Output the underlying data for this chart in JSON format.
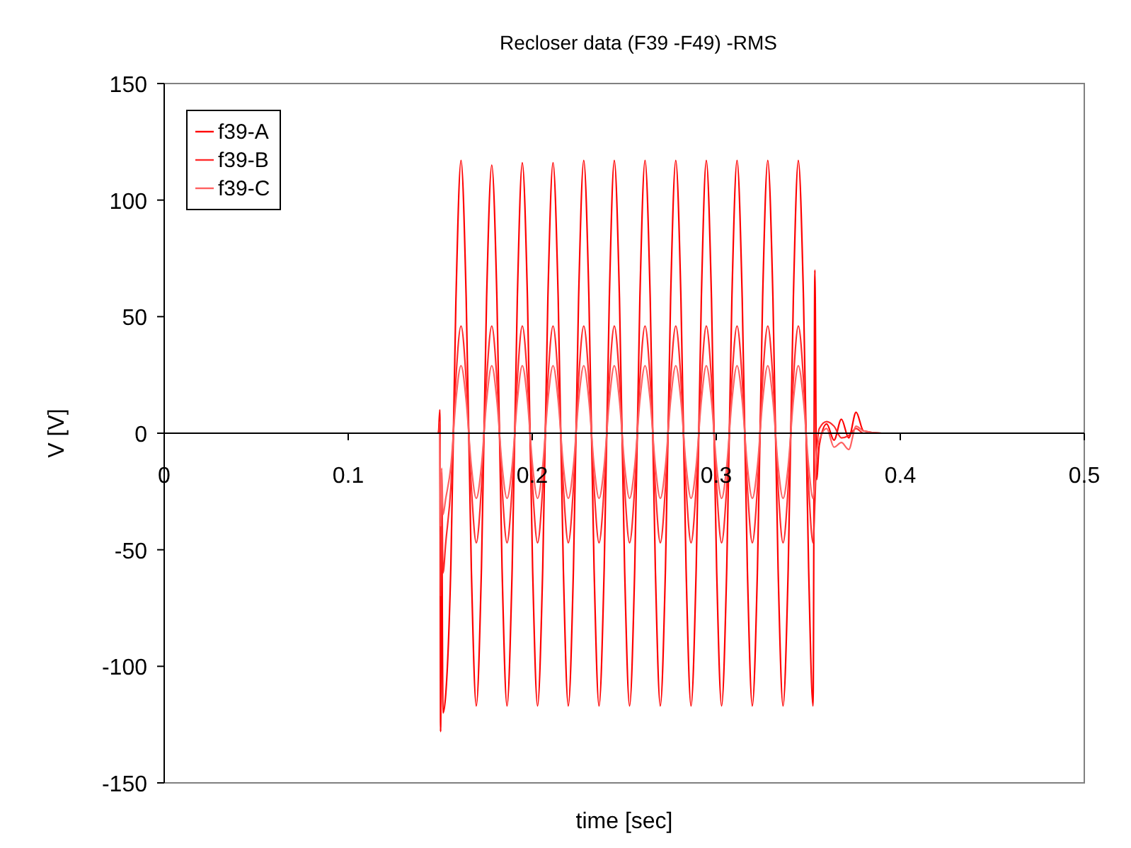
{
  "chart_data": {
    "type": "line",
    "title": "Recloser data  (F39 -F49) -RMS",
    "xlabel": "time [sec]",
    "ylabel": "V [V]",
    "x": [
      0,
      0.149,
      0.1498,
      0.1502,
      0.1508,
      0.1515,
      0.153,
      0.1558,
      0.1585,
      0.1613,
      0.1641,
      0.1669,
      0.1696,
      0.1724,
      0.1752,
      0.178,
      0.1808,
      0.1836,
      0.1863,
      0.1891,
      0.1919,
      0.1946,
      0.1974,
      0.2002,
      0.2029,
      0.2057,
      0.2085,
      0.2113,
      0.2141,
      0.2169,
      0.2196,
      0.2224,
      0.2252,
      0.228,
      0.2308,
      0.2336,
      0.2363,
      0.2391,
      0.2419,
      0.2446,
      0.2474,
      0.2502,
      0.2529,
      0.2557,
      0.2585,
      0.2613,
      0.2641,
      0.2669,
      0.2696,
      0.2724,
      0.2752,
      0.278,
      0.2808,
      0.2836,
      0.2863,
      0.2891,
      0.2919,
      0.2946,
      0.2974,
      0.3002,
      0.3029,
      0.3057,
      0.3085,
      0.3113,
      0.3141,
      0.3169,
      0.3196,
      0.3224,
      0.3252,
      0.328,
      0.3308,
      0.3336,
      0.3363,
      0.3391,
      0.3419,
      0.3446,
      0.3474,
      0.3502,
      0.3526,
      0.3536,
      0.3545,
      0.356,
      0.36,
      0.364,
      0.368,
      0.372,
      0.376,
      0.38,
      0.39,
      0.5
    ],
    "series": [
      {
        "name": "f39-A",
        "color": "#ff0000",
        "values": [
          0,
          0,
          10,
          -128,
          -40,
          -120,
          -112,
          -56,
          56,
          117,
          58,
          -58,
          -117,
          -58,
          58,
          115,
          58,
          -58,
          -117,
          -58,
          58,
          116,
          58,
          -58,
          -117,
          -58,
          58,
          116,
          58,
          -58,
          -117,
          -58,
          58,
          117,
          58,
          -58,
          -117,
          -58,
          58,
          117,
          58,
          -58,
          -117,
          -58,
          58,
          117,
          58,
          -58,
          -117,
          -58,
          58,
          117,
          58,
          -58,
          -117,
          -58,
          58,
          117,
          58,
          -58,
          -117,
          -58,
          58,
          117,
          58,
          -58,
          -117,
          -58,
          58,
          117,
          58,
          -58,
          -117,
          -58,
          58,
          117,
          58,
          -58,
          -117,
          70,
          -20,
          -5,
          4,
          -3,
          6,
          -2,
          9,
          1,
          0,
          0
        ]
      },
      {
        "name": "f39-B",
        "color": "#ff2a2a",
        "values": [
          0,
          0,
          5,
          -70,
          -20,
          -60,
          -47,
          -23,
          23,
          46,
          23,
          -23,
          -47,
          -23,
          23,
          46,
          23,
          -23,
          -47,
          -23,
          23,
          46,
          23,
          -23,
          -47,
          -23,
          23,
          46,
          23,
          -23,
          -47,
          -23,
          23,
          46,
          23,
          -23,
          -47,
          -23,
          23,
          46,
          23,
          -23,
          -47,
          -23,
          23,
          46,
          23,
          -23,
          -47,
          -23,
          23,
          46,
          23,
          -23,
          -47,
          -23,
          23,
          46,
          23,
          -23,
          -47,
          -23,
          23,
          46,
          23,
          -23,
          -47,
          -23,
          23,
          46,
          23,
          -23,
          -47,
          -23,
          23,
          46,
          23,
          -23,
          -47,
          -30,
          -10,
          2,
          5,
          3,
          -2,
          -1,
          2,
          0,
          0,
          0
        ]
      },
      {
        "name": "f39-C",
        "color": "#ff6060",
        "values": [
          0,
          0,
          0,
          -40,
          -15,
          -35,
          -28,
          -14,
          14,
          29,
          14,
          -14,
          -28,
          -14,
          14,
          29,
          14,
          -14,
          -28,
          -14,
          14,
          29,
          14,
          -14,
          -28,
          -14,
          14,
          29,
          14,
          -14,
          -28,
          -14,
          14,
          29,
          14,
          -14,
          -28,
          -14,
          14,
          29,
          14,
          -14,
          -28,
          -14,
          14,
          29,
          14,
          -14,
          -28,
          -14,
          14,
          29,
          14,
          -14,
          -28,
          -14,
          14,
          29,
          14,
          -14,
          -28,
          -14,
          14,
          29,
          14,
          -14,
          -28,
          -14,
          14,
          29,
          14,
          -14,
          -28,
          -14,
          14,
          29,
          14,
          -14,
          -28,
          -20,
          -8,
          -3,
          2,
          -6,
          -4,
          -7,
          3,
          1,
          0,
          0
        ]
      }
    ],
    "xlim": [
      0,
      0.5
    ],
    "xticks": [
      0,
      0.1,
      0.2,
      0.3,
      0.4,
      0.5
    ],
    "ylim": [
      -150,
      150
    ],
    "yticks": [
      -150,
      -100,
      -50,
      0,
      50,
      100,
      150
    ],
    "grid": false,
    "legend": "top left",
    "marker": "none",
    "line_style": "solid"
  }
}
